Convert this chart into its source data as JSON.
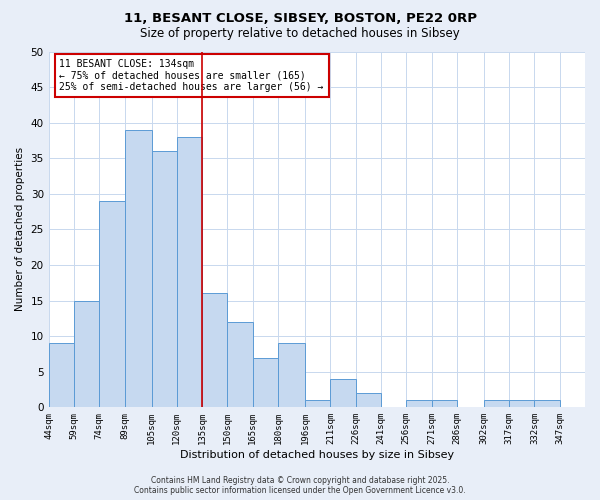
{
  "title1": "11, BESANT CLOSE, SIBSEY, BOSTON, PE22 0RP",
  "title2": "Size of property relative to detached houses in Sibsey",
  "xlabel": "Distribution of detached houses by size in Sibsey",
  "ylabel": "Number of detached properties",
  "bar_left_edges": [
    44,
    59,
    74,
    89,
    105,
    120,
    135,
    150,
    165,
    180,
    196,
    211,
    226,
    241,
    256,
    271,
    286,
    302,
    317,
    332
  ],
  "bar_heights": [
    9,
    15,
    29,
    39,
    36,
    38,
    16,
    12,
    7,
    9,
    1,
    4,
    2,
    0,
    1,
    1,
    0,
    1,
    1,
    1
  ],
  "bar_widths": [
    15,
    15,
    15,
    16,
    15,
    15,
    15,
    15,
    15,
    16,
    15,
    15,
    15,
    15,
    15,
    15,
    16,
    15,
    15,
    15
  ],
  "tick_labels": [
    "44sqm",
    "59sqm",
    "74sqm",
    "89sqm",
    "105sqm",
    "120sqm",
    "135sqm",
    "150sqm",
    "165sqm",
    "180sqm",
    "196sqm",
    "211sqm",
    "226sqm",
    "241sqm",
    "256sqm",
    "271sqm",
    "286sqm",
    "302sqm",
    "317sqm",
    "332sqm",
    "347sqm"
  ],
  "tick_positions": [
    44,
    59,
    74,
    89,
    105,
    120,
    135,
    150,
    165,
    180,
    196,
    211,
    226,
    241,
    256,
    271,
    286,
    302,
    317,
    332,
    347
  ],
  "bar_color": "#c6d9f0",
  "bar_edge_color": "#5b9bd5",
  "vline_x": 135,
  "vline_color": "#cc0000",
  "ylim": [
    0,
    50
  ],
  "yticks": [
    0,
    5,
    10,
    15,
    20,
    25,
    30,
    35,
    40,
    45,
    50
  ],
  "annotation_lines": [
    "11 BESANT CLOSE: 134sqm",
    "← 75% of detached houses are smaller (165)",
    "25% of semi-detached houses are larger (56) →"
  ],
  "annotation_box_color": "#cc0000",
  "footer1": "Contains HM Land Registry data © Crown copyright and database right 2025.",
  "footer2": "Contains public sector information licensed under the Open Government Licence v3.0.",
  "bg_color": "#e8eef8",
  "plot_bg_color": "#ffffff",
  "grid_color": "#c8d8ee"
}
